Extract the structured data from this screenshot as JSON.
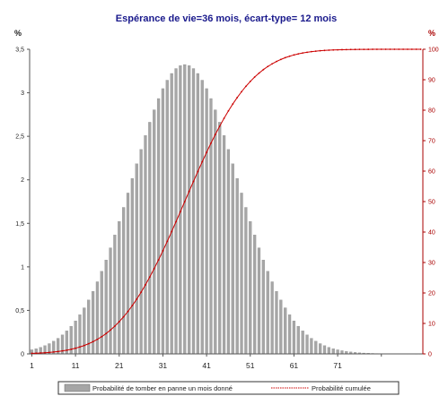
{
  "chart_data": {
    "type": "bar",
    "title": "Espérance de vie=36 mois, écart-type= 12 mois",
    "y_left_unit": "%",
    "y_right_unit": "%",
    "x_ticks": [
      "1",
      "11",
      "21",
      "31",
      "41",
      "51",
      "61",
      "71"
    ],
    "y_left_ticks": [
      "0",
      "0,5",
      "1",
      "1,5",
      "2",
      "2,5",
      "3",
      "3,5"
    ],
    "y_right_ticks": [
      "0",
      "10",
      "20",
      "30",
      "40",
      "50",
      "60",
      "70",
      "80",
      "90",
      "100"
    ],
    "y_left_range": [
      0,
      3.5
    ],
    "y_right_range": [
      0,
      100
    ],
    "x_range": [
      1,
      90
    ],
    "grid": false,
    "legend_position": "bottom",
    "bar_color": "#a6a6a6",
    "line_color": "#cc0000",
    "distribution": {
      "mean": 36,
      "std_dev": 12,
      "months": 90
    },
    "series": [
      {
        "name": "Probabilité de tomber en panne un mois donné",
        "kind": "bar",
        "axis": "left"
      },
      {
        "name": "Probabilité cumulée",
        "kind": "line",
        "axis": "right"
      }
    ]
  }
}
